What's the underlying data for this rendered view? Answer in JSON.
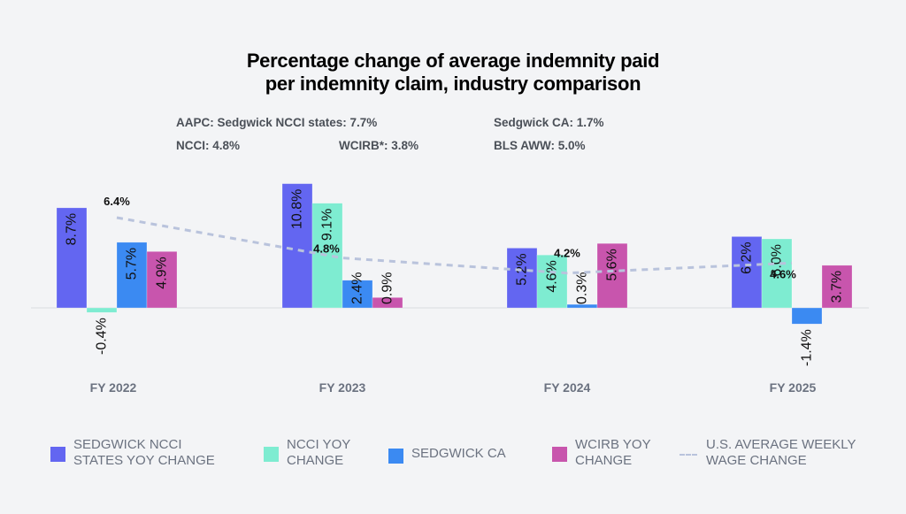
{
  "chart_data": {
    "type": "bar",
    "title": "Percentage change of average indemnity paid per indemnity claim, industry comparison",
    "title_lines": [
      "Percentage change of average indemnity paid",
      "per indemnity claim, industry comparison"
    ],
    "categories": [
      "FY 2022",
      "FY 2023",
      "FY 2024",
      "FY 2025"
    ],
    "series": [
      {
        "name": "SEDGWICK NCCI STATES YOY CHANGE",
        "color": "#6366f1",
        "values": [
          8.7,
          10.8,
          5.2,
          6.2
        ],
        "labels": [
          "8.7%",
          "10.8%",
          "5.2%",
          "6.2%"
        ]
      },
      {
        "name": "NCCI YOY CHANGE",
        "color": "#7eecd1",
        "values": [
          -0.4,
          9.1,
          4.6,
          6.0
        ],
        "labels": [
          "-0.4%",
          "9.1%",
          "4.6%",
          "6.0%"
        ]
      },
      {
        "name": "SEDGWICK CA",
        "color": "#3b8af2",
        "values": [
          5.7,
          2.4,
          0.3,
          -1.4
        ],
        "labels": [
          "5.7%",
          "2.4%",
          "0.3%",
          "-1.4%"
        ]
      },
      {
        "name": "WCIRB YOY CHANGE",
        "color": "#c855ad",
        "values": [
          4.9,
          0.9,
          5.6,
          3.7
        ],
        "labels": [
          "4.9%",
          "0.9%",
          "5.6%",
          "3.7%"
        ]
      }
    ],
    "line_series": {
      "name": "U.S. AVERAGE WEEKLY WAGE CHANGE",
      "color": "#b9c3dc",
      "style": "dashed",
      "values": [
        6.4,
        4.8,
        4.2,
        4.6
      ],
      "labels": [
        "6.4%",
        "4.8%",
        "4.2%",
        "4.6%"
      ]
    },
    "legend": [
      {
        "lines": [
          "SEDGWICK NCCI",
          "STATES YOY CHANGE"
        ],
        "color": "#6366f1",
        "kind": "box"
      },
      {
        "lines": [
          "NCCI YOY",
          "CHANGE"
        ],
        "color": "#7eecd1",
        "kind": "box"
      },
      {
        "lines": [
          "SEDGWICK CA"
        ],
        "color": "#3b8af2",
        "kind": "box"
      },
      {
        "lines": [
          "WCIRB YOY",
          "CHANGE"
        ],
        "color": "#c855ad",
        "kind": "box"
      },
      {
        "lines": [
          "U.S. AVERAGE WEEKLY",
          "WAGE CHANGE"
        ],
        "color": "#b9c3dc",
        "kind": "dash"
      }
    ],
    "legend_position": "bottom",
    "grid": false,
    "xlabel": "",
    "ylabel": ""
  },
  "stats": {
    "aapc_sedgwick_ncci": "AAPC: Sedgwick NCCI states: 7.7%",
    "sedgwick_ca": "Sedgwick CA: 1.7%",
    "ncci": "NCCI: 4.8%",
    "wcirb": "WCIRB*: 3.8%",
    "bls_aww": "BLS AWW: 5.0%"
  }
}
